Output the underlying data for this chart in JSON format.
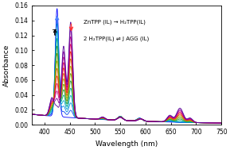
{
  "xlim": [
    375,
    750
  ],
  "ylim": [
    0,
    0.16
  ],
  "xlabel": "Wavelength (nm)",
  "ylabel": "Absorbance",
  "xticks": [
    400,
    450,
    500,
    550,
    600,
    650,
    700,
    750
  ],
  "yticks": [
    0.0,
    0.02,
    0.04,
    0.06,
    0.08,
    0.1,
    0.12,
    0.14,
    0.16
  ],
  "annotation_line1": "ZnTPP (IL) → H₂TPP(IL)",
  "annotation_line2": "2 H₂TPP(IL) ⇌ J AGG (IL)",
  "arrow_up_color": "#5588ff",
  "arrow_down_color": "#ff3333",
  "T_label": "T",
  "figsize": [
    2.89,
    1.89
  ],
  "dpi": 100,
  "bg_color": "white",
  "num_spectra": 14,
  "colors_spectrum": [
    "#0000ff",
    "#0044ee",
    "#0088dd",
    "#00aacc",
    "#00aa88",
    "#229933",
    "#669900",
    "#aaaa00",
    "#cc6600",
    "#ee2200",
    "#dd0055",
    "#bb0088",
    "#880099",
    "#550099"
  ]
}
